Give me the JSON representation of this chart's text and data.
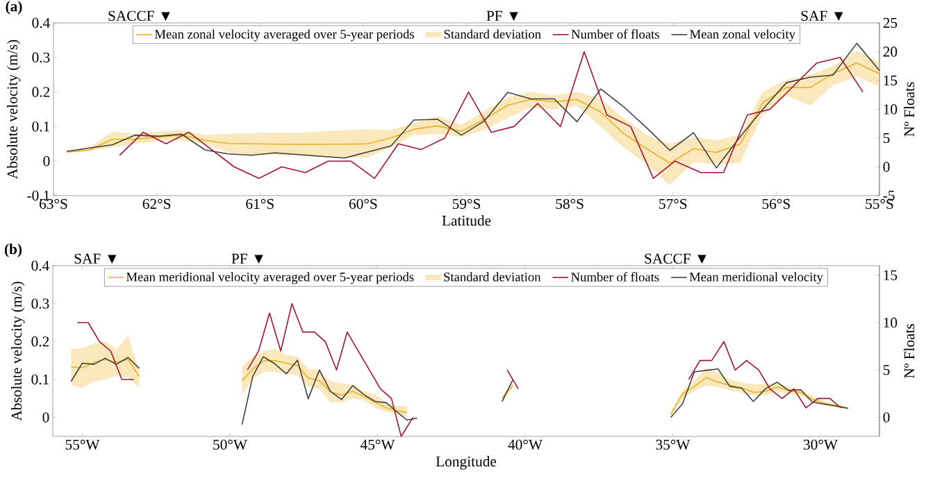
{
  "chart_data": [
    {
      "type": "line",
      "xlabel": "Latitude",
      "ylabel": "Absolute velocity (m/s)",
      "y2label": "Nº Floats",
      "annotations": [
        "(a)",
        "Standard deviation",
        "SACCF ▼",
        "PF ▼",
        "SAF ▼"
      ],
      "xlim": [
        -63,
        -55
      ],
      "ylim": [
        -0.1,
        0.4
      ],
      "y2lim": [
        -5,
        25
      ],
      "xticks": [
        {
          "value": -63,
          "label": "63°S"
        },
        {
          "value": -62,
          "label": "62°S"
        },
        {
          "value": -61,
          "label": "61°S"
        },
        {
          "value": -60,
          "label": "60°S"
        },
        {
          "value": -59,
          "label": "59°S"
        },
        {
          "value": -58,
          "label": "58°S"
        },
        {
          "value": -57,
          "label": "57°S"
        },
        {
          "value": -56,
          "label": "56°S"
        },
        {
          "value": -55,
          "label": "55°S"
        }
      ],
      "yticks": [
        -0.1,
        0,
        0.1,
        0.2,
        0.3,
        0.4
      ],
      "y2ticks": [
        -5,
        0,
        5,
        10,
        15,
        20,
        25
      ],
      "legend": "top",
      "series": [
        {
          "name": "Mean zonal velocity averaged over 5-year periods",
          "type": "line",
          "color": "#edb120",
          "x": [
            -62.87,
            -62.65,
            -62.43,
            -62.21,
            -61.98,
            -61.76,
            -61.53,
            -61.31,
            -61.08,
            -60.86,
            -60.63,
            -60.41,
            -60.18,
            -59.96,
            -59.73,
            -59.51,
            -59.28,
            -59.05,
            -58.83,
            -58.6,
            -58.38,
            -58.15,
            -57.93,
            -57.7,
            -57.48,
            -57.25,
            -57.03,
            -56.8,
            -56.58,
            -56.35,
            -56.13,
            -55.9,
            -55.67,
            -55.45,
            -55.22,
            -55.0
          ],
          "values": [
            0.026,
            0.032,
            0.063,
            0.063,
            0.07,
            0.075,
            0.06,
            0.051,
            0.05,
            0.049,
            0.048,
            0.048,
            0.049,
            0.05,
            0.067,
            0.092,
            0.102,
            0.086,
            0.12,
            0.162,
            0.178,
            0.172,
            0.178,
            0.142,
            0.08,
            0.035,
            -0.006,
            0.036,
            0.025,
            0.049,
            0.169,
            0.213,
            0.213,
            0.253,
            0.284,
            0.253
          ],
          "lower": [
            0.024,
            0.03,
            0.04,
            0.05,
            0.058,
            0.06,
            0.05,
            0.025,
            0.018,
            0.018,
            0.015,
            0.012,
            0.01,
            0.01,
            0.04,
            0.075,
            0.078,
            0.07,
            0.09,
            0.125,
            0.155,
            0.15,
            0.16,
            0.1,
            0.04,
            -0.01,
            -0.07,
            -0.002,
            -0.01,
            -0.005,
            0.135,
            0.19,
            0.16,
            0.22,
            0.245,
            0.215
          ],
          "upper": [
            0.03,
            0.04,
            0.085,
            0.08,
            0.085,
            0.09,
            0.075,
            0.079,
            0.081,
            0.082,
            0.082,
            0.085,
            0.09,
            0.092,
            0.09,
            0.11,
            0.13,
            0.105,
            0.145,
            0.185,
            0.2,
            0.19,
            0.2,
            0.18,
            0.125,
            0.075,
            0.05,
            0.07,
            0.06,
            0.075,
            0.2,
            0.235,
            0.25,
            0.275,
            0.32,
            0.285
          ]
        },
        {
          "name": "Number of floats",
          "type": "line",
          "axis": "y2",
          "color": "#a2142f",
          "x": [
            -62.36,
            -62.13,
            -61.91,
            -61.69,
            -61.25,
            -61.01,
            -60.79,
            -60.56,
            -60.34,
            -60.12,
            -59.89,
            -59.66,
            -59.44,
            -59.21,
            -58.98,
            -58.76,
            -58.54,
            -58.31,
            -58.09,
            -57.86,
            -57.64,
            -57.41,
            -57.19,
            -56.98,
            -56.73,
            -56.51,
            -56.28,
            -56.06,
            -55.61,
            -55.38,
            -55.16
          ],
          "values": [
            2,
            6,
            4,
            6,
            0,
            -2,
            0,
            -1,
            1,
            1,
            -2,
            4,
            3,
            5,
            13,
            6,
            7,
            11,
            7,
            20,
            9,
            7,
            -2,
            1,
            -1,
            -1,
            9,
            10,
            18,
            19,
            13
          ]
        },
        {
          "name": "Mean zonal velocity",
          "type": "line",
          "color": "#404040",
          "x": [
            -62.87,
            -62.65,
            -62.43,
            -62.21,
            -61.98,
            -61.76,
            -61.53,
            -61.31,
            -61.08,
            -60.86,
            -60.63,
            -60.41,
            -60.18,
            -59.96,
            -59.73,
            -59.51,
            -59.28,
            -59.05,
            -58.83,
            -58.6,
            -58.38,
            -58.15,
            -57.93,
            -57.7,
            -57.48,
            -57.25,
            -57.03,
            -56.8,
            -56.58,
            -56.35,
            -56.13,
            -55.9,
            -55.67,
            -55.45,
            -55.22,
            -55.0
          ],
          "values": [
            0.028,
            0.038,
            0.047,
            0.075,
            0.072,
            0.078,
            0.032,
            0.021,
            0.017,
            0.024,
            0.019,
            0.014,
            0.009,
            0.026,
            0.044,
            0.119,
            0.121,
            0.075,
            0.115,
            0.199,
            0.18,
            0.18,
            0.114,
            0.209,
            0.158,
            0.095,
            0.031,
            0.082,
            -0.02,
            0.07,
            0.15,
            0.227,
            0.243,
            0.249,
            0.341,
            0.262
          ]
        }
      ]
    },
    {
      "type": "line",
      "xlabel": "Longitude",
      "ylabel": "Absolute velocity (m/s)",
      "y2label": "Nº Floats",
      "annotations": [
        "(b)",
        "Standard deviation",
        "SAF ▼",
        "PF ▼",
        "SACCF ▼"
      ],
      "xlim": [
        -56,
        -28
      ],
      "ylim": [
        -0.05,
        0.4
      ],
      "y2lim": [
        -2,
        16
      ],
      "xticks": [
        {
          "value": -55,
          "label": "55°W"
        },
        {
          "value": -50,
          "label": "50°W"
        },
        {
          "value": -45,
          "label": "45°W"
        },
        {
          "value": -40,
          "label": "40°W"
        },
        {
          "value": -35,
          "label": "35°W"
        },
        {
          "value": -30,
          "label": "30°W"
        }
      ],
      "yticks": [
        0,
        0.1,
        0.2,
        0.3,
        0.4
      ],
      "y2ticks": [
        0,
        5,
        10,
        15
      ],
      "legend": "top",
      "series": [
        {
          "name": "Mean meridional velocity averaged over 5-year periods",
          "type": "line",
          "color": "#edb120",
          "x": [
            -55.38,
            -55.0,
            -54.6,
            -54.23,
            -53.85,
            -53.45,
            -53.07,
            -51,
            -49.59,
            -49.22,
            -48.85,
            -48.47,
            -48.09,
            -47.71,
            -47.35,
            -46.97,
            -46.6,
            -46.22,
            -45.84,
            -45.46,
            -45.08,
            -44.71,
            -44.4,
            -44.01,
            -42,
            -40.78,
            -40.42,
            -37.5,
            -35.07,
            -34.67,
            -34.27,
            -33.87,
            -33.47,
            -33.07,
            -32.67,
            -32.27,
            -31.87,
            -31.47,
            -31.07,
            -30.67,
            -30.27,
            -29.87,
            -29.47,
            -29.07
          ],
          "values": [
            0.133,
            0.131,
            0.145,
            0.153,
            0.145,
            0.153,
            0.107,
            null,
            0.097,
            0.128,
            0.149,
            0.15,
            0.143,
            0.137,
            0.104,
            0.097,
            0.067,
            0.059,
            0.069,
            0.055,
            0.04,
            0.025,
            0.018,
            0.013,
            null,
            0.051,
            0.084,
            null,
            0.008,
            0.062,
            0.082,
            0.105,
            0.093,
            0.085,
            0.078,
            0.066,
            0.069,
            0.08,
            0.071,
            0.066,
            0.048,
            0.037,
            0.031,
            0.024
          ],
          "lower": [
            0.085,
            0.078,
            0.095,
            0.1,
            0.11,
            0.105,
            0.08,
            null,
            0.06,
            0.1,
            0.12,
            0.12,
            0.115,
            0.11,
            0.08,
            0.075,
            0.04,
            0.04,
            0.05,
            0.045,
            0.025,
            0.015,
            0.01,
            0.0,
            null,
            0.045,
            0.078,
            null,
            0.005,
            0.05,
            0.07,
            0.085,
            0.08,
            0.072,
            0.065,
            0.058,
            0.058,
            0.068,
            0.062,
            0.058,
            0.042,
            0.032,
            0.027,
            0.021
          ],
          "upper": [
            0.18,
            0.183,
            0.195,
            0.2,
            0.18,
            0.215,
            0.12,
            null,
            0.135,
            0.16,
            0.175,
            0.18,
            0.165,
            0.16,
            0.128,
            0.125,
            0.095,
            0.09,
            0.085,
            0.07,
            0.06,
            0.04,
            0.03,
            0.03,
            null,
            0.057,
            0.09,
            null,
            0.012,
            0.072,
            0.098,
            0.13,
            0.118,
            0.1,
            0.092,
            0.088,
            0.088,
            0.09,
            0.08,
            0.075,
            0.055,
            0.043,
            0.035,
            0.027
          ]
        },
        {
          "name": "Number of floats",
          "type": "line",
          "axis": "y2",
          "color": "#a2142f",
          "x": [
            -55.17,
            -54.8,
            -54.42,
            -54.04,
            -53.66,
            -53.26,
            -51,
            -49.41,
            -49.03,
            -48.66,
            -48.28,
            -47.9,
            -47.53,
            -47.14,
            -46.77,
            -46.39,
            -46.03,
            -44.9,
            -44.53,
            -44.2,
            -43.8,
            -42,
            -40.61,
            -40.23,
            -37.5,
            -34.46,
            -34.08,
            -33.68,
            -33.27,
            -32.89,
            -32.5,
            -32.09,
            -31.71,
            -31.3,
            -30.9,
            -30.49,
            -30.09,
            -29.68,
            -29.3
          ],
          "values": [
            10,
            10,
            8,
            7,
            4,
            4,
            null,
            5,
            7,
            11,
            7,
            12,
            9,
            9,
            8,
            5,
            9,
            3,
            2,
            -2,
            0,
            null,
            5,
            3,
            null,
            4,
            6,
            6,
            8,
            5,
            6,
            5,
            3,
            2,
            3,
            1,
            2,
            2,
            1
          ]
        },
        {
          "name": "Mean meridional velocity",
          "type": "line",
          "color": "#404040",
          "x": [
            -55.38,
            -55.0,
            -54.6,
            -54.23,
            -53.85,
            -53.45,
            -53.07,
            -51,
            -49.59,
            -49.23,
            -48.87,
            -48.49,
            -48.09,
            -47.71,
            -47.35,
            -46.97,
            -46.6,
            -46.22,
            -45.84,
            -45.46,
            -45.08,
            -44.71,
            -44.01,
            -43.66,
            -42,
            -40.78,
            -40.42,
            -37.5,
            -35.07,
            -34.67,
            -34.27,
            -33.87,
            -33.47,
            -33.07,
            -32.67,
            -32.27,
            -31.87,
            -31.47,
            -31.07,
            -30.67,
            -30.27,
            -29.87,
            -29.47,
            -29.07
          ],
          "values": [
            0.095,
            0.143,
            0.14,
            0.156,
            0.14,
            0.158,
            0.129,
            null,
            -0.019,
            0.108,
            0.16,
            0.142,
            0.115,
            0.151,
            0.049,
            0.125,
            0.069,
            0.047,
            0.084,
            0.06,
            0.042,
            0.039,
            -0.007,
            -0.002,
            null,
            0.042,
            0.099,
            null,
            0.0,
            0.036,
            0.12,
            0.124,
            0.128,
            0.082,
            0.077,
            0.042,
            0.075,
            0.093,
            0.071,
            0.073,
            0.04,
            0.035,
            0.03,
            0.024
          ]
        }
      ]
    }
  ]
}
